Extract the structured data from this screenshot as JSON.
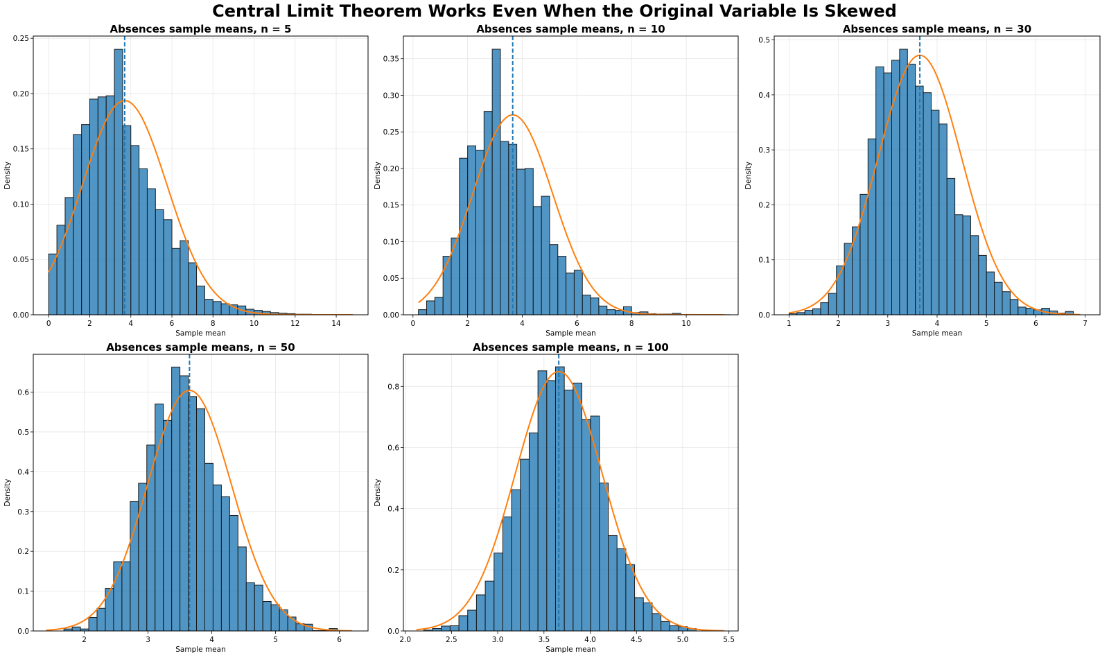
{
  "figure": {
    "title": "Central Limit Theorem Works Even When the Original Variable Is Skewed"
  },
  "colors": {
    "bar_fill": "#1f77b4",
    "bar_edge": "#1a1a1a",
    "normal_curve": "#ff7f0e",
    "mean_line": "#1f77b4",
    "grid": "#e6e6e6"
  },
  "chart_data": [
    {
      "type": "bar",
      "title": "Absences sample means, n = 5",
      "xlabel": "Sample mean",
      "ylabel": "Density",
      "xlim": [
        -0.75,
        15.55
      ],
      "ylim": [
        0,
        0.252
      ],
      "xticks": [
        0,
        2,
        4,
        6,
        8,
        10,
        12,
        14
      ],
      "xtick_labels": [
        "0",
        "2",
        "4",
        "6",
        "8",
        "10",
        "12",
        "14"
      ],
      "yticks": [
        0,
        0.05,
        0.1,
        0.15,
        0.2,
        0.25
      ],
      "ytick_labels": [
        "0.00",
        "0.05",
        "0.10",
        "0.15",
        "0.20",
        "0.25"
      ],
      "grid": true,
      "bins_start": 0.0,
      "bin_width": 0.4,
      "values": [
        0.055,
        0.081,
        0.106,
        0.163,
        0.172,
        0.195,
        0.197,
        0.198,
        0.24,
        0.171,
        0.153,
        0.132,
        0.114,
        0.095,
        0.086,
        0.06,
        0.067,
        0.047,
        0.026,
        0.014,
        0.012,
        0.01,
        0.009,
        0.008,
        0.005,
        0.004,
        0.003,
        0.002,
        0.0015,
        0.001,
        0.0005,
        0.0005,
        0.0003,
        0.0002,
        0.0001,
        0.0001,
        0.0001
      ],
      "normal_curve": {
        "mean": 3.7,
        "sd": 2.06,
        "x_range": [
          0,
          14.8
        ]
      },
      "mean_line_x": 3.7
    },
    {
      "type": "bar",
      "title": "Absences sample means, n = 10",
      "xlabel": "Sample mean",
      "ylabel": "Density",
      "xlim": [
        -0.35,
        11.9
      ],
      "ylim": [
        0,
        0.381
      ],
      "xticks": [
        0,
        2,
        4,
        6,
        8,
        10
      ],
      "xtick_labels": [
        "0",
        "2",
        "4",
        "6",
        "8",
        "10"
      ],
      "yticks": [
        0,
        0.05,
        0.1,
        0.15,
        0.2,
        0.25,
        0.3,
        0.35
      ],
      "ytick_labels": [
        "0.00",
        "0.05",
        "0.10",
        "0.15",
        "0.20",
        "0.25",
        "0.30",
        "0.35"
      ],
      "grid": true,
      "bins_start": 0.2,
      "bin_width": 0.3,
      "values": [
        0.007,
        0.019,
        0.024,
        0.08,
        0.105,
        0.214,
        0.231,
        0.225,
        0.278,
        0.363,
        0.237,
        0.233,
        0.199,
        0.2,
        0.148,
        0.162,
        0.096,
        0.08,
        0.057,
        0.061,
        0.027,
        0.023,
        0.012,
        0.007,
        0.006,
        0.011,
        0.003,
        0.004,
        0.0015,
        0.001,
        0.001,
        0.002,
        0.0005,
        0.0005,
        0.0003,
        0.0002,
        0.0001,
        0.0001
      ],
      "normal_curve": {
        "mean": 3.65,
        "sd": 1.46,
        "x_range": [
          0.2,
          11.4
        ]
      },
      "mean_line_x": 3.65
    },
    {
      "type": "bar",
      "title": "Absences sample means, n = 30",
      "xlabel": "Sample mean",
      "ylabel": "Density",
      "xlim": [
        0.7,
        7.3
      ],
      "ylim": [
        0,
        0.507
      ],
      "xticks": [
        1,
        2,
        3,
        4,
        5,
        6,
        7
      ],
      "xtick_labels": [
        "1",
        "2",
        "3",
        "4",
        "5",
        "6",
        "7"
      ],
      "yticks": [
        0,
        0.1,
        0.2,
        0.3,
        0.4,
        0.5
      ],
      "ytick_labels": [
        "0.0",
        "0.1",
        "0.2",
        "0.3",
        "0.4",
        "0.5"
      ],
      "grid": true,
      "bins_start": 1.0,
      "bin_width": 0.16,
      "values": [
        0.002,
        0.004,
        0.008,
        0.011,
        0.022,
        0.039,
        0.089,
        0.13,
        0.16,
        0.219,
        0.32,
        0.451,
        0.44,
        0.463,
        0.483,
        0.456,
        0.416,
        0.404,
        0.372,
        0.347,
        0.248,
        0.182,
        0.18,
        0.144,
        0.108,
        0.078,
        0.059,
        0.042,
        0.028,
        0.014,
        0.012,
        0.009,
        0.012,
        0.007,
        0.003,
        0.006
      ],
      "normal_curve": {
        "mean": 3.65,
        "sd": 0.845,
        "x_range": [
          1.0,
          6.9
        ]
      },
      "mean_line_x": 3.65
    },
    {
      "type": "bar",
      "title": "Absences sample means, n = 50",
      "xlabel": "Sample mean",
      "ylabel": "Density",
      "xlim": [
        1.2,
        6.45
      ],
      "ylim": [
        0,
        0.695
      ],
      "xticks": [
        2,
        3,
        4,
        5,
        6
      ],
      "xtick_labels": [
        "2",
        "3",
        "4",
        "5",
        "6"
      ],
      "yticks": [
        0,
        0.1,
        0.2,
        0.3,
        0.4,
        0.5,
        0.6
      ],
      "ytick_labels": [
        "0.0",
        "0.1",
        "0.2",
        "0.3",
        "0.4",
        "0.5",
        "0.6"
      ],
      "grid": true,
      "bins_start": 1.68,
      "bin_width": 0.13,
      "values": [
        0.005,
        0.01,
        0.005,
        0.034,
        0.057,
        0.107,
        0.174,
        0.174,
        0.325,
        0.371,
        0.467,
        0.57,
        0.529,
        0.663,
        0.641,
        0.589,
        0.558,
        0.421,
        0.367,
        0.337,
        0.29,
        0.211,
        0.121,
        0.115,
        0.074,
        0.066,
        0.053,
        0.035,
        0.018,
        0.017,
        0.001,
        0.001,
        0.006
      ],
      "normal_curve": {
        "mean": 3.65,
        "sd": 0.66,
        "x_range": [
          1.4,
          6.2
        ]
      },
      "mean_line_x": 3.65
    },
    {
      "type": "bar",
      "title": "Absences sample means, n = 100",
      "xlabel": "Sample mean",
      "ylabel": "Density",
      "xlim": [
        1.98,
        5.6
      ],
      "ylim": [
        0,
        0.905
      ],
      "xticks": [
        2.0,
        2.5,
        3.0,
        3.5,
        4.0,
        4.5,
        5.0,
        5.5
      ],
      "xtick_labels": [
        "2.0",
        "2.5",
        "3.0",
        "3.5",
        "4.0",
        "4.5",
        "5.0",
        "5.5"
      ],
      "yticks": [
        0,
        0.2,
        0.4,
        0.6,
        0.8
      ],
      "ytick_labels": [
        "0.0",
        "0.2",
        "0.4",
        "0.6",
        "0.8"
      ],
      "grid": true,
      "bins_start": 2.2,
      "bin_width": 0.095,
      "values": [
        0.003,
        0.008,
        0.016,
        0.017,
        0.05,
        0.068,
        0.118,
        0.163,
        0.255,
        0.373,
        0.462,
        0.562,
        0.648,
        0.851,
        0.819,
        0.864,
        0.788,
        0.811,
        0.692,
        0.703,
        0.484,
        0.312,
        0.269,
        0.217,
        0.109,
        0.092,
        0.057,
        0.031,
        0.017,
        0.014,
        0.008
      ],
      "normal_curve": {
        "mean": 3.66,
        "sd": 0.47,
        "x_range": [
          2.12,
          5.45
        ]
      },
      "mean_line_x": 3.66
    }
  ]
}
